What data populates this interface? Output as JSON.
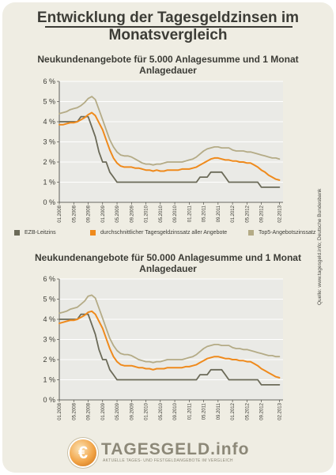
{
  "title": "Entwicklung der Tagesgeldzinsen im Monatsvergleich",
  "source": "Quelle: www.tagesgeld.info; Deutsche Bundesbank",
  "legend": [
    {
      "label": "EZB-Leitzins",
      "color": "#6b6a58"
    },
    {
      "label": "durchschnittlicher Tagesgeldzinssatz aller Angebote",
      "color": "#ef8a1c"
    },
    {
      "label": "Top5-Angebotszinssatz",
      "color": "#b4ab86"
    }
  ],
  "logo": {
    "symbol": "€",
    "text": "TAGESGELD.info",
    "subtitle": "AKTUELLE TAGES- UND FESTGELDANGEBOTE IM VERGLEICH"
  },
  "colors": {
    "frame": "#efede3",
    "plot": "#eaeae6",
    "grid": "#ffffff",
    "axis": "#3c3c36"
  },
  "chart_data": [
    {
      "type": "line",
      "title": "Neukundenangebote für 5.000 Anlagesumme und 1 Monat Anlagedauer",
      "ylim": [
        0,
        6
      ],
      "yticks": [
        "0 %",
        "1 %",
        "2 %",
        "3 %",
        "4 %",
        "5 %",
        "6 %"
      ],
      "xlim": [
        0,
        62
      ],
      "xticks": [
        {
          "i": 0,
          "label": "01.2008"
        },
        {
          "i": 4,
          "label": "05.2008"
        },
        {
          "i": 8,
          "label": "09.2008"
        },
        {
          "i": 12,
          "label": "01.2009"
        },
        {
          "i": 16,
          "label": "05.2009"
        },
        {
          "i": 20,
          "label": "09.2009"
        },
        {
          "i": 24,
          "label": "01.2010"
        },
        {
          "i": 28,
          "label": "05.2010"
        },
        {
          "i": 32,
          "label": "09.2010"
        },
        {
          "i": 36,
          "label": "01.2011"
        },
        {
          "i": 40,
          "label": "05.2011"
        },
        {
          "i": 44,
          "label": "09.2011"
        },
        {
          "i": 48,
          "label": "01.2012"
        },
        {
          "i": 52,
          "label": "05.2012"
        },
        {
          "i": 56,
          "label": "09.2012"
        },
        {
          "i": 61,
          "label": "02.2013"
        }
      ],
      "grid": true,
      "legend_position": "bottom",
      "series": [
        {
          "name": "EZB-Leitzins",
          "color": "#6b6a58",
          "values": [
            4.0,
            4.0,
            4.0,
            4.0,
            4.0,
            4.0,
            4.25,
            4.25,
            4.25,
            3.75,
            3.25,
            2.5,
            2.0,
            2.0,
            1.5,
            1.25,
            1.0,
            1.0,
            1.0,
            1.0,
            1.0,
            1.0,
            1.0,
            1.0,
            1.0,
            1.0,
            1.0,
            1.0,
            1.0,
            1.0,
            1.0,
            1.0,
            1.0,
            1.0,
            1.0,
            1.0,
            1.0,
            1.0,
            1.0,
            1.25,
            1.25,
            1.25,
            1.5,
            1.5,
            1.5,
            1.5,
            1.25,
            1.0,
            1.0,
            1.0,
            1.0,
            1.0,
            1.0,
            1.0,
            1.0,
            1.0,
            0.75,
            0.75,
            0.75,
            0.75,
            0.75,
            0.75
          ]
        },
        {
          "name": "durchschnittlicher Tagesgeldzinssatz aller Angebote",
          "color": "#ef8a1c",
          "values": [
            3.85,
            3.85,
            3.9,
            3.95,
            3.95,
            4.0,
            4.1,
            4.2,
            4.35,
            4.45,
            4.3,
            3.95,
            3.6,
            3.1,
            2.6,
            2.2,
            1.95,
            1.8,
            1.75,
            1.75,
            1.75,
            1.7,
            1.7,
            1.65,
            1.6,
            1.6,
            1.55,
            1.6,
            1.55,
            1.55,
            1.6,
            1.6,
            1.6,
            1.6,
            1.65,
            1.65,
            1.65,
            1.7,
            1.75,
            1.85,
            1.95,
            2.05,
            2.15,
            2.2,
            2.2,
            2.15,
            2.1,
            2.1,
            2.05,
            2.05,
            2.0,
            2.0,
            1.95,
            1.95,
            1.85,
            1.75,
            1.6,
            1.5,
            1.35,
            1.25,
            1.15,
            1.1
          ]
        },
        {
          "name": "Top5-Angebotszinssatz",
          "color": "#b4ab86",
          "values": [
            4.4,
            4.45,
            4.5,
            4.6,
            4.65,
            4.7,
            4.8,
            4.95,
            5.15,
            5.25,
            5.1,
            4.6,
            4.1,
            3.6,
            3.1,
            2.75,
            2.5,
            2.35,
            2.3,
            2.3,
            2.25,
            2.15,
            2.05,
            1.95,
            1.9,
            1.9,
            1.85,
            1.9,
            1.9,
            1.95,
            2.0,
            2.0,
            2.0,
            2.0,
            2.0,
            2.05,
            2.1,
            2.15,
            2.25,
            2.4,
            2.55,
            2.65,
            2.7,
            2.75,
            2.75,
            2.7,
            2.7,
            2.7,
            2.6,
            2.55,
            2.55,
            2.55,
            2.5,
            2.5,
            2.45,
            2.4,
            2.35,
            2.3,
            2.25,
            2.2,
            2.2,
            2.15
          ]
        }
      ]
    },
    {
      "type": "line",
      "title": "Neukundenangebote für 50.000 Anlagesumme und 1 Monat Anlagedauer",
      "ylim": [
        0,
        6
      ],
      "yticks": [
        "0 %",
        "1 %",
        "2 %",
        "3 %",
        "4 %",
        "5 %",
        "6 %"
      ],
      "xlim": [
        0,
        62
      ],
      "xticks": [
        {
          "i": 0,
          "label": "01.2008"
        },
        {
          "i": 4,
          "label": "05.2008"
        },
        {
          "i": 8,
          "label": "09.2008"
        },
        {
          "i": 12,
          "label": "01.2009"
        },
        {
          "i": 16,
          "label": "05.2009"
        },
        {
          "i": 20,
          "label": "09.2009"
        },
        {
          "i": 24,
          "label": "01.2010"
        },
        {
          "i": 28,
          "label": "05.2010"
        },
        {
          "i": 32,
          "label": "09.2010"
        },
        {
          "i": 36,
          "label": "01.2011"
        },
        {
          "i": 40,
          "label": "05.2011"
        },
        {
          "i": 44,
          "label": "09.2011"
        },
        {
          "i": 48,
          "label": "01.2012"
        },
        {
          "i": 52,
          "label": "05.2012"
        },
        {
          "i": 56,
          "label": "09.2012"
        },
        {
          "i": 61,
          "label": "02.2013"
        }
      ],
      "grid": true,
      "series": [
        {
          "name": "EZB-Leitzins",
          "color": "#6b6a58",
          "values": [
            4.0,
            4.0,
            4.0,
            4.0,
            4.0,
            4.0,
            4.25,
            4.25,
            4.25,
            3.75,
            3.25,
            2.5,
            2.0,
            2.0,
            1.5,
            1.25,
            1.0,
            1.0,
            1.0,
            1.0,
            1.0,
            1.0,
            1.0,
            1.0,
            1.0,
            1.0,
            1.0,
            1.0,
            1.0,
            1.0,
            1.0,
            1.0,
            1.0,
            1.0,
            1.0,
            1.0,
            1.0,
            1.0,
            1.0,
            1.25,
            1.25,
            1.25,
            1.5,
            1.5,
            1.5,
            1.5,
            1.25,
            1.0,
            1.0,
            1.0,
            1.0,
            1.0,
            1.0,
            1.0,
            1.0,
            1.0,
            0.75,
            0.75,
            0.75,
            0.75,
            0.75,
            0.75
          ]
        },
        {
          "name": "durchschnittlicher Tagesgeldzinssatz aller Angebote",
          "color": "#ef8a1c",
          "values": [
            3.8,
            3.85,
            3.9,
            3.95,
            3.95,
            4.0,
            4.1,
            4.2,
            4.35,
            4.4,
            4.25,
            3.9,
            3.55,
            3.05,
            2.55,
            2.15,
            1.9,
            1.75,
            1.7,
            1.7,
            1.7,
            1.65,
            1.6,
            1.6,
            1.55,
            1.55,
            1.5,
            1.55,
            1.55,
            1.55,
            1.6,
            1.6,
            1.6,
            1.6,
            1.6,
            1.65,
            1.65,
            1.7,
            1.75,
            1.85,
            1.95,
            2.05,
            2.1,
            2.15,
            2.15,
            2.1,
            2.05,
            2.05,
            2.0,
            2.0,
            1.95,
            1.95,
            1.9,
            1.9,
            1.8,
            1.7,
            1.55,
            1.45,
            1.35,
            1.25,
            1.15,
            1.1
          ]
        },
        {
          "name": "Top5-Angebotszinssatz",
          "color": "#b4ab86",
          "values": [
            4.3,
            4.35,
            4.4,
            4.5,
            4.55,
            4.6,
            4.75,
            4.9,
            5.15,
            5.2,
            5.05,
            4.55,
            4.05,
            3.55,
            3.05,
            2.7,
            2.45,
            2.3,
            2.25,
            2.25,
            2.2,
            2.1,
            2.0,
            1.95,
            1.9,
            1.9,
            1.85,
            1.9,
            1.9,
            1.95,
            2.0,
            2.0,
            2.0,
            2.0,
            2.0,
            2.05,
            2.1,
            2.15,
            2.25,
            2.4,
            2.55,
            2.65,
            2.7,
            2.75,
            2.75,
            2.7,
            2.7,
            2.7,
            2.6,
            2.55,
            2.55,
            2.5,
            2.5,
            2.45,
            2.4,
            2.35,
            2.3,
            2.25,
            2.2,
            2.2,
            2.15,
            2.15
          ]
        }
      ]
    }
  ]
}
